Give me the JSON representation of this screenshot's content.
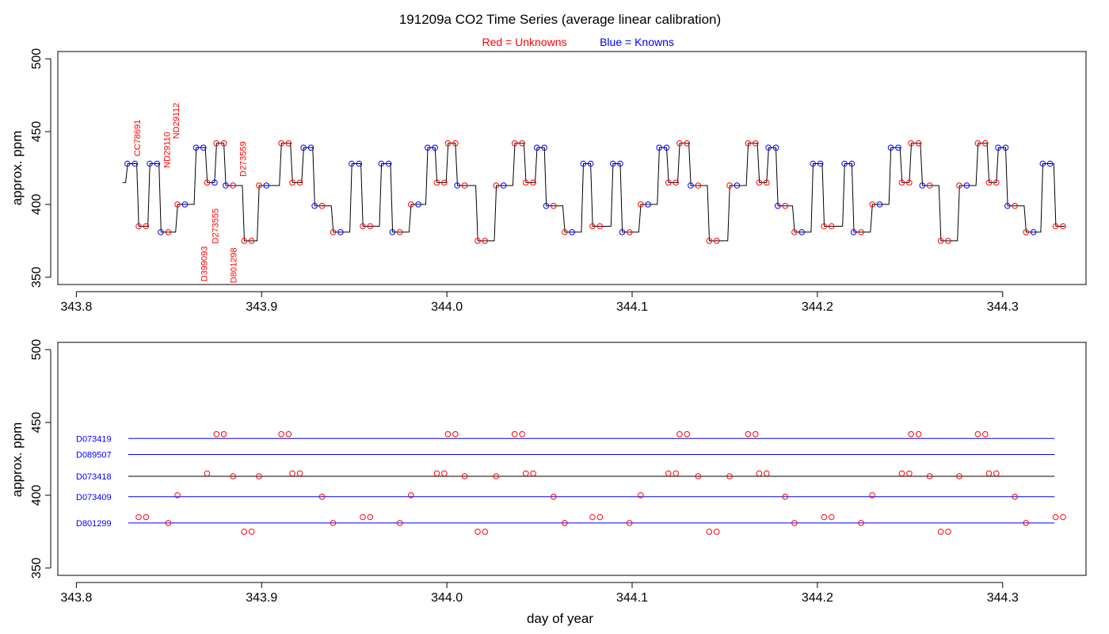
{
  "title": "191209a   CO2 Time Series (average linear calibration)",
  "legend": {
    "unknowns": "Red = Unknowns",
    "knowns": "Blue = Knowns",
    "unknowns_color": "#ff0000",
    "knowns_color": "#0000ff"
  },
  "colors": {
    "unknown": "#ff0000",
    "known": "#0000ff",
    "trace": "#000000"
  },
  "chart_data": [
    {
      "type": "line",
      "panel": "top",
      "ylabel": "approx. ppm",
      "xlim": [
        343.79,
        344.345
      ],
      "ylim": [
        345,
        505
      ],
      "xticks": [
        343.8,
        343.9,
        344.0,
        344.1,
        344.2,
        344.3
      ],
      "xtick_labels": [
        "343.8",
        "343.9",
        "344.0",
        "344.1",
        "344.2",
        "344.3"
      ],
      "yticks": [
        350,
        400,
        450,
        500
      ],
      "ytick_labels": [
        "350",
        "400",
        "450",
        "500"
      ],
      "trace_start": [
        343.825,
        415
      ],
      "steps": [
        [
          343.827,
          428,
          "k",
          "k"
        ],
        [
          343.833,
          385,
          "u",
          "u"
        ],
        [
          343.839,
          428,
          "k",
          "k"
        ],
        [
          343.845,
          381,
          "k",
          "u"
        ],
        [
          343.854,
          400,
          "u",
          "k"
        ],
        [
          343.864,
          439,
          "k",
          "k"
        ],
        [
          343.87,
          415,
          "u",
          "k"
        ],
        [
          343.875,
          442,
          "u",
          "u"
        ],
        [
          343.88,
          413,
          "k",
          "u"
        ],
        [
          343.89,
          375,
          "u",
          "u"
        ],
        [
          343.898,
          413,
          "u",
          "k"
        ],
        [
          343.91,
          442,
          "u",
          "u"
        ],
        [
          343.916,
          415,
          "u",
          "u"
        ],
        [
          343.922,
          439,
          "k",
          "k"
        ],
        [
          343.928,
          399,
          "k",
          "u"
        ],
        [
          343.938,
          381,
          "u",
          "k"
        ],
        [
          343.948,
          428,
          "k",
          "k"
        ],
        [
          343.954,
          385,
          "u",
          "u"
        ],
        [
          343.964,
          428,
          "k",
          "k"
        ],
        [
          343.97,
          381,
          "k",
          "u"
        ],
        [
          343.98,
          400,
          "u",
          "k"
        ],
        [
          343.989,
          439,
          "k",
          "k"
        ],
        [
          343.994,
          415,
          "u",
          "u"
        ],
        [
          344.0,
          442,
          "u",
          "u"
        ],
        [
          344.005,
          413,
          "k",
          "u"
        ],
        [
          344.016,
          375,
          "u",
          "u"
        ],
        [
          344.026,
          413,
          "u",
          "k"
        ],
        [
          344.036,
          442,
          "u",
          "u"
        ],
        [
          344.042,
          415,
          "u",
          "u"
        ],
        [
          344.048,
          439,
          "k",
          "k"
        ],
        [
          344.053,
          399,
          "k",
          "u"
        ],
        [
          344.063,
          381,
          "u",
          "k"
        ],
        [
          344.073,
          428,
          "k",
          "k"
        ],
        [
          344.078,
          385,
          "u",
          "u"
        ],
        [
          344.089,
          428,
          "k",
          "k"
        ],
        [
          344.094,
          381,
          "k",
          "u"
        ],
        [
          344.104,
          400,
          "u",
          "k"
        ],
        [
          344.114,
          439,
          "k",
          "k"
        ],
        [
          344.119,
          415,
          "u",
          "u"
        ],
        [
          344.125,
          442,
          "u",
          "u"
        ],
        [
          344.131,
          413,
          "k",
          "u"
        ],
        [
          344.141,
          375,
          "u",
          "u"
        ],
        [
          344.152,
          413,
          "u",
          "k"
        ],
        [
          344.162,
          442,
          "u",
          "u"
        ],
        [
          344.168,
          415,
          "u",
          "u"
        ],
        [
          344.173,
          439,
          "k",
          "k"
        ],
        [
          344.178,
          399,
          "k",
          "u"
        ],
        [
          344.187,
          381,
          "u",
          "k"
        ],
        [
          344.197,
          428,
          "k",
          "k"
        ],
        [
          344.203,
          385,
          "u",
          "u"
        ],
        [
          344.214,
          428,
          "k",
          "k"
        ],
        [
          344.219,
          381,
          "k",
          "u"
        ],
        [
          344.229,
          400,
          "u",
          "k"
        ],
        [
          344.239,
          439,
          "k",
          "k"
        ],
        [
          344.245,
          415,
          "u",
          "u"
        ],
        [
          344.25,
          442,
          "u",
          "u"
        ],
        [
          344.256,
          413,
          "k",
          "u"
        ],
        [
          344.266,
          375,
          "u",
          "u"
        ],
        [
          344.276,
          413,
          "u",
          "k"
        ],
        [
          344.286,
          442,
          "u",
          "u"
        ],
        [
          344.292,
          415,
          "u",
          "u"
        ],
        [
          344.297,
          439,
          "k",
          "k"
        ],
        [
          344.302,
          399,
          "k",
          "u"
        ],
        [
          344.312,
          381,
          "u",
          "k"
        ],
        [
          344.321,
          428,
          "k",
          "k"
        ],
        [
          344.328,
          385,
          "u",
          "u"
        ]
      ],
      "annotations": [
        {
          "text": "CC78691",
          "x": 343.8345,
          "y": 433
        },
        {
          "text": "ND29110",
          "x": 343.8505,
          "y": 425
        },
        {
          "text": "ND29112",
          "x": 343.8555,
          "y": 445
        },
        {
          "text": "D273559",
          "x": 343.8915,
          "y": 419
        },
        {
          "text": "D273555",
          "x": 343.8765,
          "y": 373
        },
        {
          "text": "D399093",
          "x": 343.8705,
          "y": 347
        },
        {
          "text": "D801298",
          "x": 343.8865,
          "y": 346
        }
      ]
    },
    {
      "type": "scatter",
      "panel": "bottom",
      "xlabel": "day of year",
      "ylabel": "approx. ppm",
      "xlim": [
        343.79,
        344.345
      ],
      "ylim": [
        345,
        505
      ],
      "xticks": [
        343.8,
        343.9,
        344.0,
        344.1,
        344.2,
        344.3
      ],
      "xtick_labels": [
        "343.8",
        "343.9",
        "344.0",
        "344.1",
        "344.2",
        "344.3"
      ],
      "yticks": [
        350,
        400,
        450,
        500
      ],
      "ytick_labels": [
        "350",
        "400",
        "450",
        "500"
      ],
      "reference_lines": [
        {
          "name": "D073419",
          "y": 439,
          "color": "#0000ff"
        },
        {
          "name": "D089507",
          "y": 428,
          "color": "#0000ff"
        },
        {
          "name": "D073418",
          "y": 413,
          "color": "#000000"
        },
        {
          "name": "D073409",
          "y": 399,
          "color": "#0000ff"
        },
        {
          "name": "D801299",
          "y": 381,
          "color": "#0000ff"
        }
      ],
      "line_x_range": [
        343.828,
        344.328
      ]
    }
  ]
}
